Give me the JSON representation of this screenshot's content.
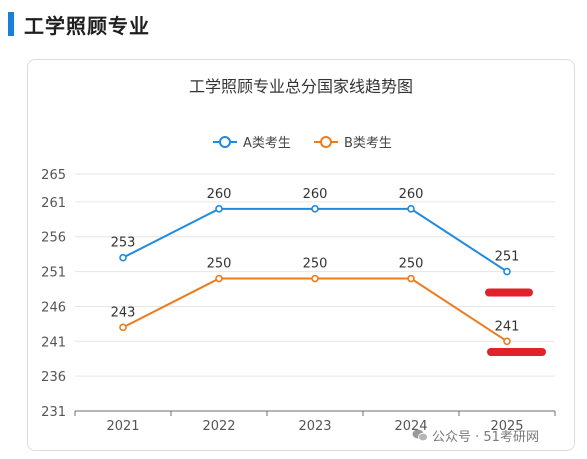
{
  "section": {
    "title": "工学照顾专业"
  },
  "colors": {
    "accent": "#1a7fd6",
    "seriesA": "#1f8be0",
    "seriesB": "#ee7c1e",
    "redact": "#e0222b"
  },
  "chart_data": {
    "type": "line",
    "title": "工学照顾专业总分国家线趋势图",
    "categories": [
      "2021",
      "2022",
      "2023",
      "2024",
      "2025"
    ],
    "series": [
      {
        "name": "A类考生",
        "values": [
          253,
          260,
          260,
          260,
          251
        ],
        "color": "#1f8be0"
      },
      {
        "name": "B类考生",
        "values": [
          243,
          250,
          250,
          250,
          241
        ],
        "color": "#ee7c1e"
      }
    ],
    "y_ticks": [
      "231",
      "236",
      "241",
      "246",
      "251",
      "256",
      "261",
      "265"
    ],
    "ylim": [
      231,
      265
    ],
    "legend_position": "top-center",
    "grid": true,
    "redaction_marks": 2
  },
  "watermark": {
    "text": "公众号 · 51考研网",
    "icon": "wechat-icon"
  }
}
